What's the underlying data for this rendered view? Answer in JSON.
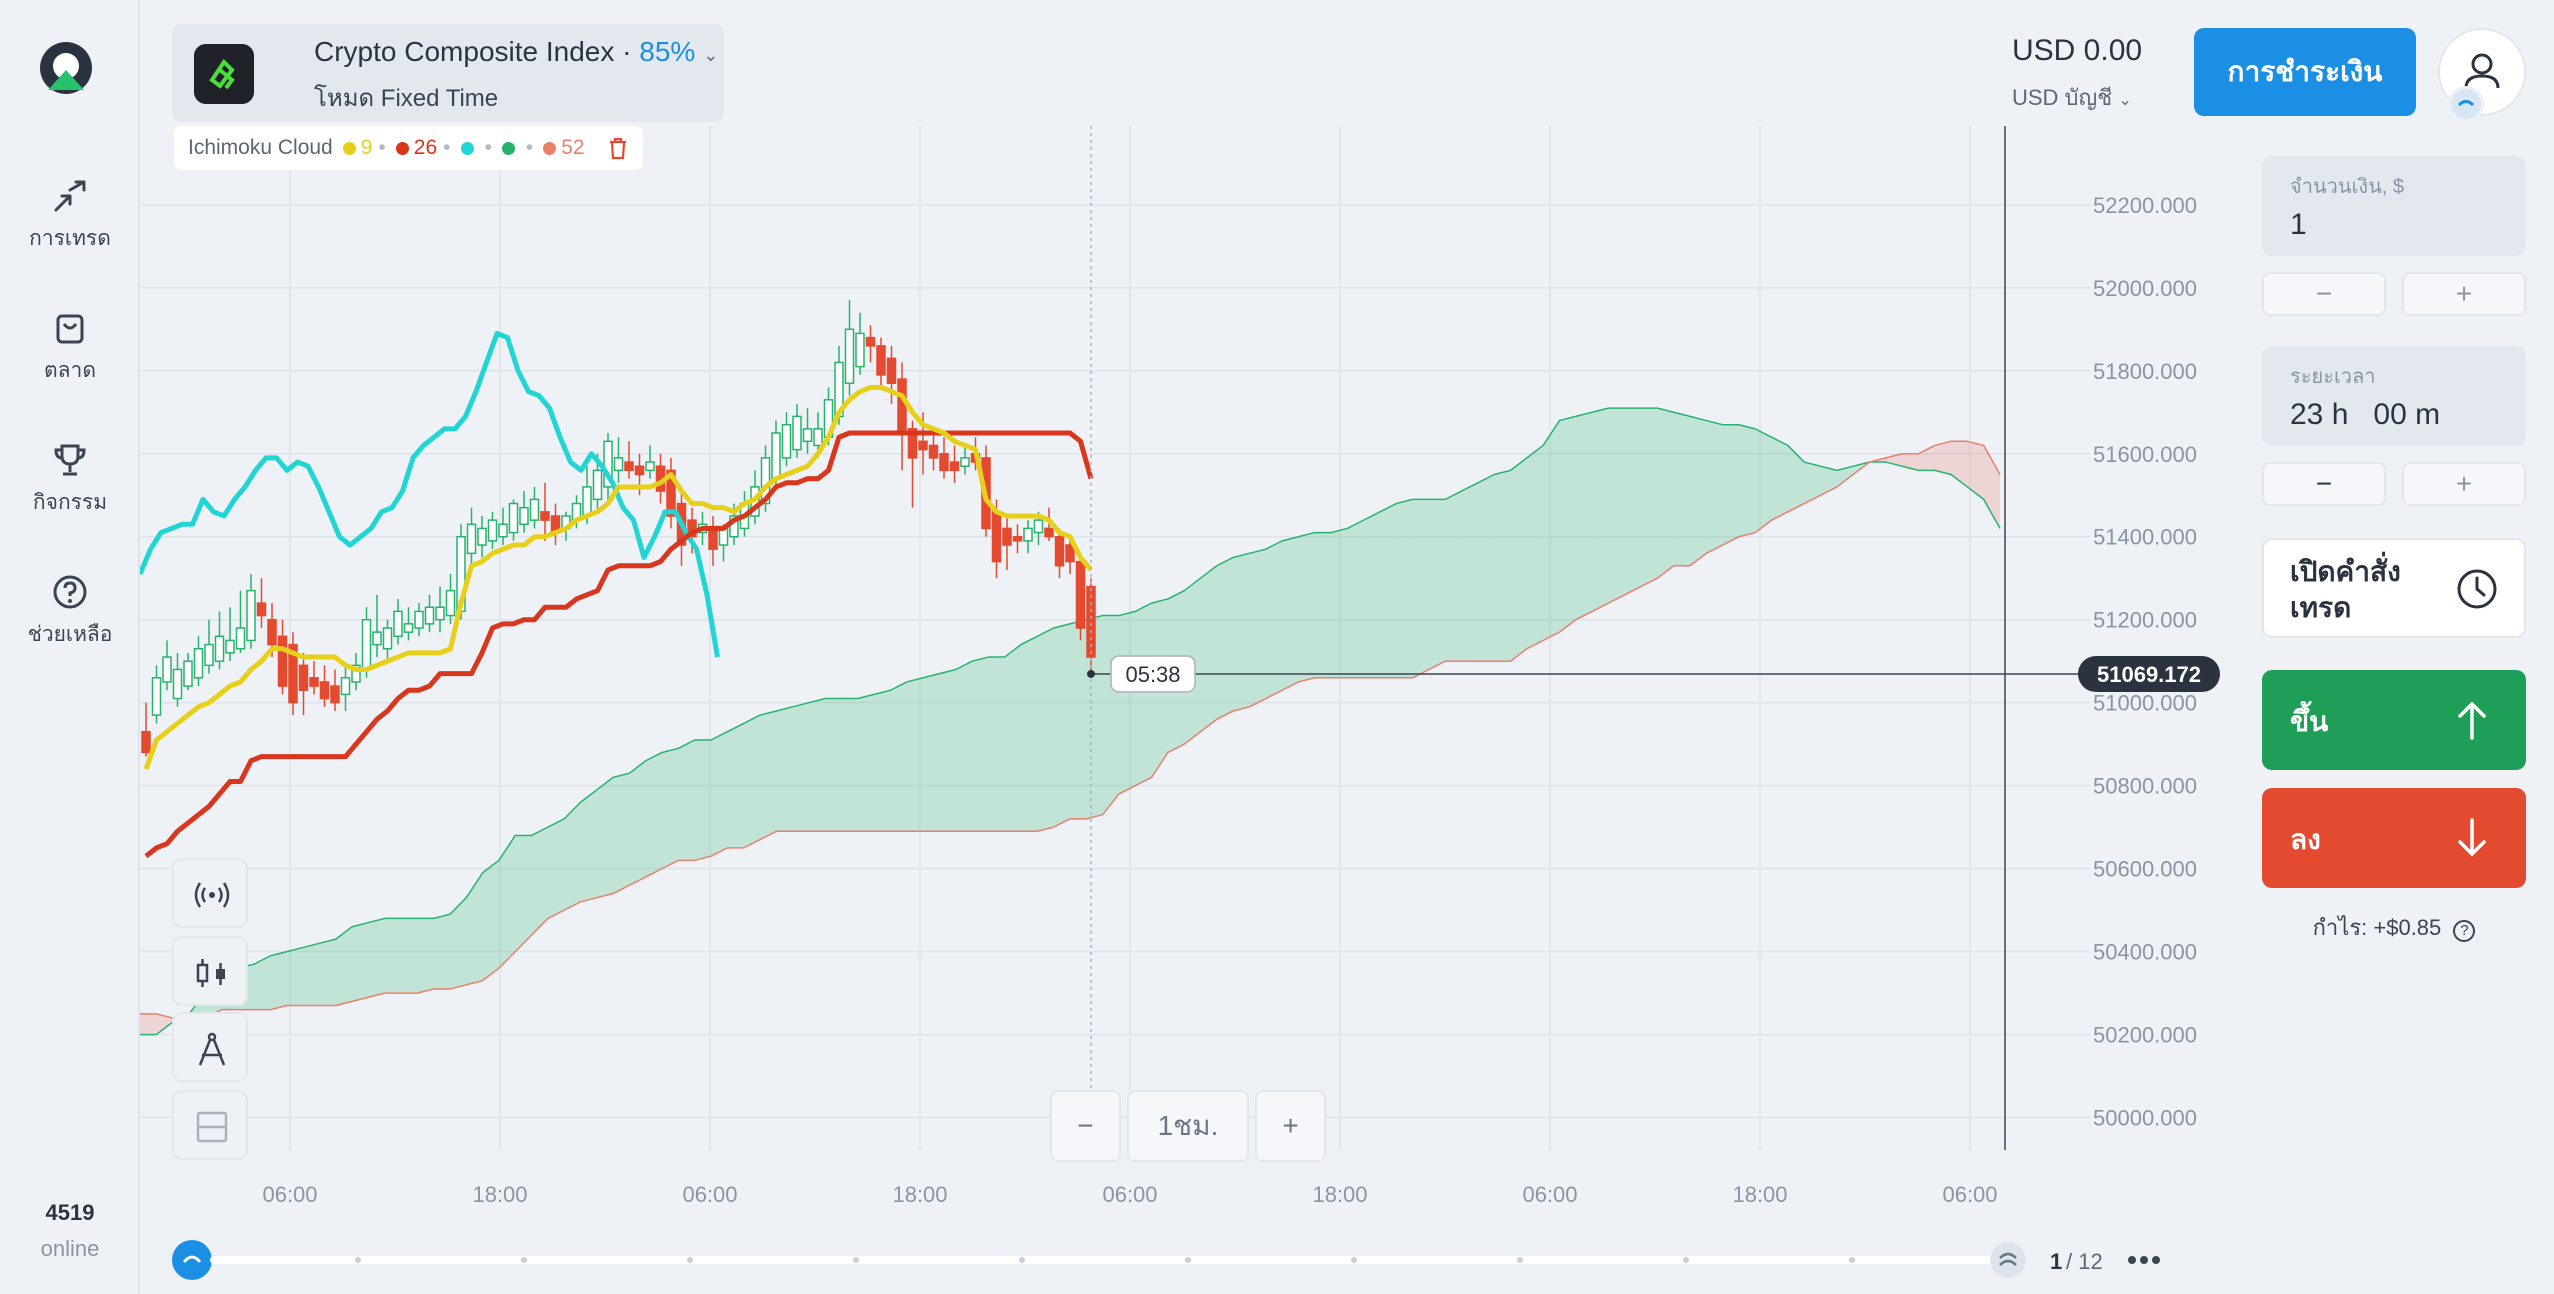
{
  "sidebar": {
    "items": [
      {
        "label": "การเทรด",
        "icon": "trade-arrows-icon"
      },
      {
        "label": "ตลาด",
        "icon": "shopping-bag-icon"
      },
      {
        "label": "กิจกรรม",
        "icon": "trophy-icon"
      },
      {
        "label": "ช่วยเหลือ",
        "icon": "help-circle-icon"
      }
    ],
    "online_count": "4519",
    "online_label": "online"
  },
  "asset": {
    "name": "Crypto Composite Index",
    "separator": " · ",
    "payout": "85%",
    "mode": "โหมด Fixed Time"
  },
  "indicator": {
    "name": "Ichimoku Cloud",
    "params": [
      {
        "value": "9",
        "color": "#e8cf1a"
      },
      {
        "value": "26",
        "color": "#d9361e"
      },
      {
        "value": "",
        "color": "#22d5d5"
      },
      {
        "value": "",
        "color": "#27b36b"
      },
      {
        "value": "52",
        "color": "#e8806a"
      }
    ]
  },
  "header": {
    "balance": "USD 0.00",
    "account": "USD บัญชี",
    "pay_button": "การชำระเงิน"
  },
  "trade_panel": {
    "amount_label": "จำนวนเงิน, $",
    "amount_value": "1",
    "time_label": "ระยะเวลา",
    "time_value": "23 h   00 m",
    "minus": "−",
    "plus": "+",
    "open_order": "เปิดคำสั่งเทรด",
    "up_label": "ขึ้น",
    "down_label": "ลง",
    "profit": "กำไร: +$0.85",
    "up_color": "#1f9e58",
    "down_color": "#e34a2f"
  },
  "zoom": {
    "minus": "−",
    "interval": "1ชม.",
    "plus": "+"
  },
  "timeline": {
    "page": "1",
    "total": "/ 12"
  },
  "chart_data": {
    "type": "candlestick",
    "indicator": "Ichimoku Cloud",
    "current_price": "51069.172",
    "countdown": "05:38",
    "y_ticks": [
      "52200.000",
      "52000.000",
      "51800.000",
      "51600.000",
      "51400.000",
      "51200.000",
      "51000.000",
      "50800.000",
      "50600.000",
      "50400.000",
      "50200.000",
      "50000.000"
    ],
    "ylim": [
      49970,
      52390
    ],
    "x_ticks": [
      "06:00",
      "18:00",
      "06:00",
      "18:00",
      "06:00",
      "18:00",
      "06:00",
      "18:00",
      "06:00"
    ],
    "candles": [
      {
        "o": 50930,
        "h": 51000,
        "l": 50870,
        "c": 50880
      },
      {
        "o": 50970,
        "h": 51090,
        "l": 50950,
        "c": 51060
      },
      {
        "o": 51050,
        "h": 51150,
        "l": 51030,
        "c": 51110
      },
      {
        "o": 51010,
        "h": 51120,
        "l": 50990,
        "c": 51080
      },
      {
        "o": 51040,
        "h": 51120,
        "l": 51030,
        "c": 51100
      },
      {
        "o": 51060,
        "h": 51160,
        "l": 51040,
        "c": 51130
      },
      {
        "o": 51090,
        "h": 51200,
        "l": 51070,
        "c": 51140
      },
      {
        "o": 51100,
        "h": 51220,
        "l": 51080,
        "c": 51160
      },
      {
        "o": 51120,
        "h": 51230,
        "l": 51100,
        "c": 51150
      },
      {
        "o": 51130,
        "h": 51270,
        "l": 51120,
        "c": 51180
      },
      {
        "o": 51150,
        "h": 51310,
        "l": 51130,
        "c": 51270
      },
      {
        "o": 51240,
        "h": 51300,
        "l": 51180,
        "c": 51210
      },
      {
        "o": 51200,
        "h": 51240,
        "l": 51110,
        "c": 51140
      },
      {
        "o": 51160,
        "h": 51200,
        "l": 51020,
        "c": 51040
      },
      {
        "o": 51140,
        "h": 51170,
        "l": 50970,
        "c": 51000
      },
      {
        "o": 51090,
        "h": 51120,
        "l": 50970,
        "c": 51030
      },
      {
        "o": 51060,
        "h": 51100,
        "l": 51020,
        "c": 51040
      },
      {
        "o": 51050,
        "h": 51090,
        "l": 50990,
        "c": 51010
      },
      {
        "o": 51040,
        "h": 51080,
        "l": 50980,
        "c": 51000
      },
      {
        "o": 51020,
        "h": 51090,
        "l": 50980,
        "c": 51060
      },
      {
        "o": 51050,
        "h": 51120,
        "l": 51030,
        "c": 51090
      },
      {
        "o": 51080,
        "h": 51230,
        "l": 51060,
        "c": 51200
      },
      {
        "o": 51140,
        "h": 51260,
        "l": 51110,
        "c": 51170
      },
      {
        "o": 51130,
        "h": 51200,
        "l": 51100,
        "c": 51180
      },
      {
        "o": 51160,
        "h": 51250,
        "l": 51140,
        "c": 51220
      },
      {
        "o": 51170,
        "h": 51230,
        "l": 51150,
        "c": 51190
      },
      {
        "o": 51180,
        "h": 51240,
        "l": 51160,
        "c": 51220
      },
      {
        "o": 51190,
        "h": 51260,
        "l": 51170,
        "c": 51230
      },
      {
        "o": 51200,
        "h": 51280,
        "l": 51170,
        "c": 51230
      },
      {
        "o": 51210,
        "h": 51310,
        "l": 51190,
        "c": 51270
      },
      {
        "o": 51220,
        "h": 51430,
        "l": 51200,
        "c": 51400
      },
      {
        "o": 51360,
        "h": 51470,
        "l": 51320,
        "c": 51430
      },
      {
        "o": 51380,
        "h": 51450,
        "l": 51350,
        "c": 51420
      },
      {
        "o": 51390,
        "h": 51460,
        "l": 51370,
        "c": 51440
      },
      {
        "o": 51400,
        "h": 51470,
        "l": 51380,
        "c": 51430
      },
      {
        "o": 51410,
        "h": 51490,
        "l": 51390,
        "c": 51480
      },
      {
        "o": 51430,
        "h": 51510,
        "l": 51410,
        "c": 51470
      },
      {
        "o": 51440,
        "h": 51520,
        "l": 51420,
        "c": 51490
      },
      {
        "o": 51460,
        "h": 51530,
        "l": 51390,
        "c": 51440
      },
      {
        "o": 51450,
        "h": 51480,
        "l": 51380,
        "c": 51410
      },
      {
        "o": 51420,
        "h": 51460,
        "l": 51390,
        "c": 51450
      },
      {
        "o": 51440,
        "h": 51500,
        "l": 51420,
        "c": 51480
      },
      {
        "o": 51450,
        "h": 51570,
        "l": 51430,
        "c": 51520
      },
      {
        "o": 51490,
        "h": 51600,
        "l": 51460,
        "c": 51560
      },
      {
        "o": 51520,
        "h": 51650,
        "l": 51490,
        "c": 51630
      },
      {
        "o": 51560,
        "h": 51640,
        "l": 51530,
        "c": 51590
      },
      {
        "o": 51580,
        "h": 51630,
        "l": 51540,
        "c": 51560
      },
      {
        "o": 51570,
        "h": 51600,
        "l": 51500,
        "c": 51550
      },
      {
        "o": 51560,
        "h": 51620,
        "l": 51540,
        "c": 51580
      },
      {
        "o": 51570,
        "h": 51600,
        "l": 51480,
        "c": 51510
      },
      {
        "o": 51560,
        "h": 51590,
        "l": 51420,
        "c": 51450
      },
      {
        "o": 51480,
        "h": 51520,
        "l": 51330,
        "c": 51380
      },
      {
        "o": 51440,
        "h": 51470,
        "l": 51360,
        "c": 51400
      },
      {
        "o": 51410,
        "h": 51460,
        "l": 51380,
        "c": 51430
      },
      {
        "o": 51420,
        "h": 51450,
        "l": 51330,
        "c": 51370
      },
      {
        "o": 51380,
        "h": 51430,
        "l": 51340,
        "c": 51420
      },
      {
        "o": 51400,
        "h": 51480,
        "l": 51380,
        "c": 51450
      },
      {
        "o": 51420,
        "h": 51510,
        "l": 51400,
        "c": 51480
      },
      {
        "o": 51450,
        "h": 51560,
        "l": 51430,
        "c": 51520
      },
      {
        "o": 51480,
        "h": 51620,
        "l": 51460,
        "c": 51590
      },
      {
        "o": 51540,
        "h": 51680,
        "l": 51520,
        "c": 51650
      },
      {
        "o": 51590,
        "h": 51700,
        "l": 51570,
        "c": 51670
      },
      {
        "o": 51610,
        "h": 51720,
        "l": 51590,
        "c": 51690
      },
      {
        "o": 51630,
        "h": 51710,
        "l": 51600,
        "c": 51660
      },
      {
        "o": 51620,
        "h": 51700,
        "l": 51590,
        "c": 51660
      },
      {
        "o": 51640,
        "h": 51760,
        "l": 51620,
        "c": 51730
      },
      {
        "o": 51690,
        "h": 51860,
        "l": 51670,
        "c": 51820
      },
      {
        "o": 51770,
        "h": 51970,
        "l": 51740,
        "c": 51900
      },
      {
        "o": 51810,
        "h": 51940,
        "l": 51790,
        "c": 51890
      },
      {
        "o": 51880,
        "h": 51910,
        "l": 51820,
        "c": 51860
      },
      {
        "o": 51860,
        "h": 51880,
        "l": 51760,
        "c": 51790
      },
      {
        "o": 51830,
        "h": 51860,
        "l": 51720,
        "c": 51770
      },
      {
        "o": 51780,
        "h": 51820,
        "l": 51560,
        "c": 51650
      },
      {
        "o": 51660,
        "h": 51680,
        "l": 51470,
        "c": 51590
      },
      {
        "o": 51630,
        "h": 51700,
        "l": 51550,
        "c": 51610
      },
      {
        "o": 51620,
        "h": 51660,
        "l": 51560,
        "c": 51590
      },
      {
        "o": 51600,
        "h": 51640,
        "l": 51540,
        "c": 51560
      },
      {
        "o": 51580,
        "h": 51620,
        "l": 51530,
        "c": 51560
      },
      {
        "o": 51570,
        "h": 51620,
        "l": 51550,
        "c": 51590
      },
      {
        "o": 51600,
        "h": 51640,
        "l": 51560,
        "c": 51580
      },
      {
        "o": 51590,
        "h": 51620,
        "l": 51400,
        "c": 51420
      },
      {
        "o": 51460,
        "h": 51490,
        "l": 51300,
        "c": 51340
      },
      {
        "o": 51420,
        "h": 51450,
        "l": 51320,
        "c": 51380
      },
      {
        "o": 51400,
        "h": 51430,
        "l": 51360,
        "c": 51390
      },
      {
        "o": 51390,
        "h": 51440,
        "l": 51360,
        "c": 51420
      },
      {
        "o": 51410,
        "h": 51460,
        "l": 51380,
        "c": 51440
      },
      {
        "o": 51420,
        "h": 51470,
        "l": 51390,
        "c": 51400
      },
      {
        "o": 51400,
        "h": 51420,
        "l": 51300,
        "c": 51330
      },
      {
        "o": 51380,
        "h": 51400,
        "l": 51310,
        "c": 51340
      },
      {
        "o": 51340,
        "h": 51360,
        "l": 51150,
        "c": 51180
      },
      {
        "o": 51280,
        "h": 51300,
        "l": 51060,
        "c": 51110
      }
    ],
    "tenkan": [
      50840,
      50910,
      50930,
      50950,
      50970,
      50990,
      51000,
      51020,
      51040,
      51050,
      51080,
      51100,
      51130,
      51130,
      51120,
      51110,
      51110,
      51110,
      51110,
      51090,
      51080,
      51080,
      51090,
      51100,
      51110,
      51120,
      51120,
      51120,
      51120,
      51130,
      51240,
      51330,
      51340,
      51360,
      51370,
      51380,
      51380,
      51400,
      51400,
      51410,
      51420,
      51440,
      51450,
      51460,
      51480,
      51520,
      51520,
      51520,
      51520,
      51530,
      51550,
      51510,
      51480,
      51480,
      51470,
      51470,
      51460,
      51480,
      51490,
      51520,
      51540,
      51550,
      51560,
      51570,
      51600,
      51640,
      51700,
      51730,
      51750,
      51760,
      51760,
      51750,
      51740,
      51700,
      51670,
      51660,
      51650,
      51630,
      51620,
      51610,
      51490,
      51460,
      51450,
      51450,
      51450,
      51450,
      51440,
      51410,
      51400,
      51350,
      51320
    ],
    "kijun": [
      50630,
      50650,
      50660,
      50690,
      50710,
      50730,
      50750,
      50780,
      50810,
      50810,
      50860,
      50870,
      50870,
      50870,
      50870,
      50870,
      50870,
      50870,
      50870,
      50870,
      50900,
      50930,
      50960,
      50980,
      51010,
      51030,
      51030,
      51040,
      51070,
      51070,
      51070,
      51070,
      51120,
      51180,
      51190,
      51190,
      51200,
      51200,
      51230,
      51230,
      51230,
      51250,
      51260,
      51270,
      51320,
      51330,
      51330,
      51330,
      51330,
      51340,
      51370,
      51390,
      51410,
      51420,
      51420,
      51420,
      51440,
      51450,
      51470,
      51490,
      51520,
      51530,
      51530,
      51540,
      51540,
      51560,
      51640,
      51650,
      51650,
      51650,
      51650,
      51650,
      51650,
      51650,
      51650,
      51650,
      51650,
      51650,
      51650,
      51650,
      51650,
      51650,
      51650,
      51650,
      51650,
      51650,
      51650,
      51650,
      51650,
      51630,
      51540
    ],
    "chikou": [
      51310,
      51370,
      51410,
      51420,
      51430,
      51430,
      51490,
      51460,
      51450,
      51490,
      51520,
      51560,
      51590,
      51590,
      51560,
      51580,
      51570,
      51520,
      51460,
      51400,
      51380,
      51400,
      51420,
      51460,
      51470,
      51510,
      51590,
      51620,
      51640,
      51660,
      51660,
      51690,
      51750,
      51820,
      51890,
      51880,
      51800,
      51750,
      51740,
      51710,
      51640,
      51580,
      51560,
      51600,
      51570,
      51530,
      51470,
      51440,
      51350,
      51400,
      51460,
      51460,
      51410,
      51370,
      51260,
      51110
    ],
    "senkou_a": [
      50200,
      50200,
      50230,
      50250,
      50300,
      50330,
      50360,
      50370,
      50390,
      50400,
      50410,
      50420,
      50430,
      50460,
      50470,
      50480,
      50480,
      50480,
      50480,
      50490,
      50530,
      50590,
      50620,
      50680,
      50680,
      50700,
      50720,
      50760,
      50790,
      50820,
      50830,
      50860,
      50880,
      50890,
      50910,
      50910,
      50930,
      50950,
      50970,
      50980,
      50990,
      51000,
      51010,
      51010,
      51010,
      51020,
      51030,
      51050,
      51060,
      51070,
      51080,
      51100,
      51110,
      51110,
      51140,
      51160,
      51180,
      51190,
      51200,
      51210,
      51210,
      51220,
      51240,
      51250,
      51270,
      51300,
      51330,
      51350,
      51360,
      51370,
      51390,
      51400,
      51410,
      51410,
      51420,
      51440,
      51460,
      51480,
      51490,
      51490,
      51490,
      51510,
      51530,
      51550,
      51560,
      51590,
      51620,
      51680,
      51690,
      51700,
      51710,
      51710,
      51710,
      51710,
      51700,
      51690,
      51680,
      51670,
      51670,
      51660,
      51640,
      51620,
      51580,
      51570,
      51560,
      51570,
      51580,
      51580,
      51570,
      51560,
      51560,
      51550,
      51520,
      51490,
      51420
    ],
    "senkou_b": [
      50250,
      50250,
      50240,
      50240,
      50240,
      50260,
      50260,
      50260,
      50260,
      50270,
      50270,
      50270,
      50270,
      50280,
      50290,
      50300,
      50300,
      50300,
      50310,
      50310,
      50320,
      50330,
      50360,
      50400,
      50440,
      50480,
      50500,
      50520,
      50530,
      50540,
      50560,
      50580,
      50600,
      50620,
      50620,
      50630,
      50650,
      50650,
      50670,
      50690,
      50690,
      50690,
      50690,
      50690,
      50690,
      50690,
      50690,
      50690,
      50690,
      50690,
      50690,
      50690,
      50690,
      50690,
      50690,
      50690,
      50700,
      50720,
      50720,
      50730,
      50780,
      50800,
      50820,
      50880,
      50900,
      50930,
      50960,
      50980,
      50990,
      51010,
      51030,
      51050,
      51060,
      51060,
      51060,
      51060,
      51060,
      51060,
      51060,
      51080,
      51100,
      51100,
      51100,
      51100,
      51100,
      51130,
      51150,
      51170,
      51200,
      51220,
      51240,
      51260,
      51280,
      51300,
      51330,
      51330,
      51360,
      51380,
      51400,
      51410,
      51440,
      51460,
      51480,
      51500,
      51520,
      51550,
      51580,
      51590,
      51600,
      51600,
      51620,
      51630,
      51630,
      51620,
      51550
    ]
  }
}
